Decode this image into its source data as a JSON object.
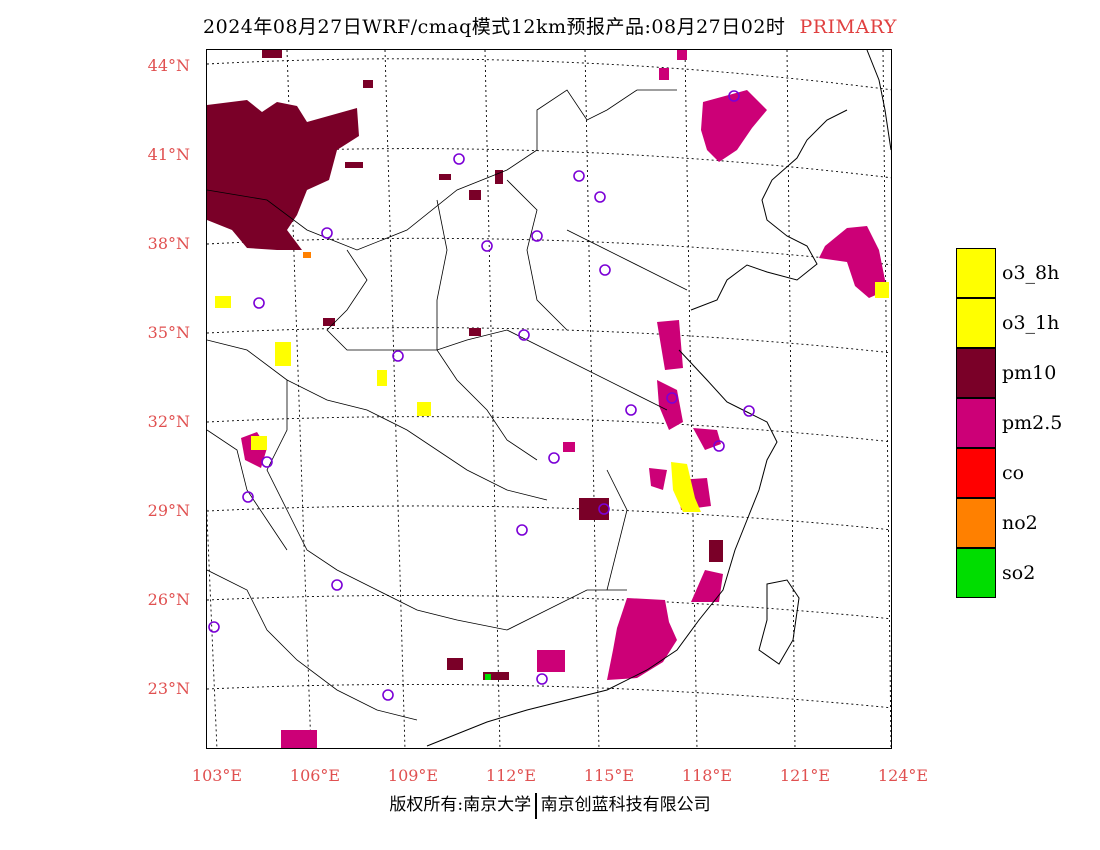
{
  "title": {
    "main": "2024年08月27日WRF/cmaq模式12km预报产品:08月27日02时",
    "tag": "PRIMARY"
  },
  "lat_labels": [
    "44°N",
    "41°N",
    "38°N",
    "35°N",
    "32°N",
    "29°N",
    "26°N",
    "23°N"
  ],
  "lon_labels": [
    "103°E",
    "106°E",
    "109°E",
    "112°E",
    "115°E",
    "118°E",
    "121°E",
    "124°E"
  ],
  "legend": [
    {
      "label": "o3_8h",
      "color": "#ffff00"
    },
    {
      "label": "o3_1h",
      "color": "#ffff00"
    },
    {
      "label": "pm10",
      "color": "#7a0028"
    },
    {
      "label": "pm2.5",
      "color": "#cc0077"
    },
    {
      "label": "co",
      "color": "#ff0000"
    },
    {
      "label": "no2",
      "color": "#ff8000"
    },
    {
      "label": "so2",
      "color": "#00dd00"
    }
  ],
  "footer": {
    "left": "版权所有:南京大学",
    "right": "南京创蓝科技有限公司"
  }
}
